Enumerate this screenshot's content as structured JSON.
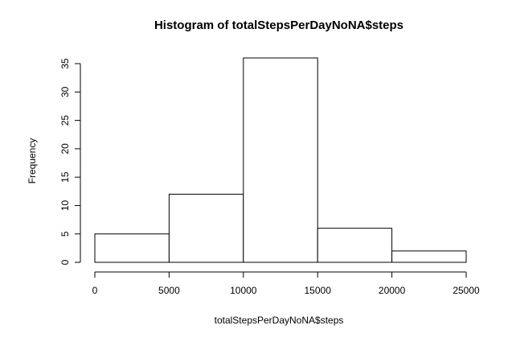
{
  "chart_data": {
    "type": "bar",
    "title": "Histogram of totalStepsPerDayNoNA$steps",
    "xlabel": "totalStepsPerDayNoNA$steps",
    "ylabel": "Frequency",
    "bins": [
      {
        "start": 0,
        "end": 5000,
        "count": 5
      },
      {
        "start": 5000,
        "end": 10000,
        "count": 12
      },
      {
        "start": 10000,
        "end": 15000,
        "count": 36
      },
      {
        "start": 15000,
        "end": 20000,
        "count": 6
      },
      {
        "start": 20000,
        "end": 25000,
        "count": 2
      }
    ],
    "xlim": [
      0,
      25000
    ],
    "ylim": [
      0,
      36
    ],
    "x_ticks": [
      "0",
      "5000",
      "10000",
      "15000",
      "20000",
      "25000"
    ],
    "y_ticks": [
      "0",
      "5",
      "10",
      "15",
      "20",
      "25",
      "30",
      "35"
    ],
    "grid": false,
    "colors": {
      "bar_fill": "#ffffff",
      "bar_stroke": "#000000"
    }
  }
}
